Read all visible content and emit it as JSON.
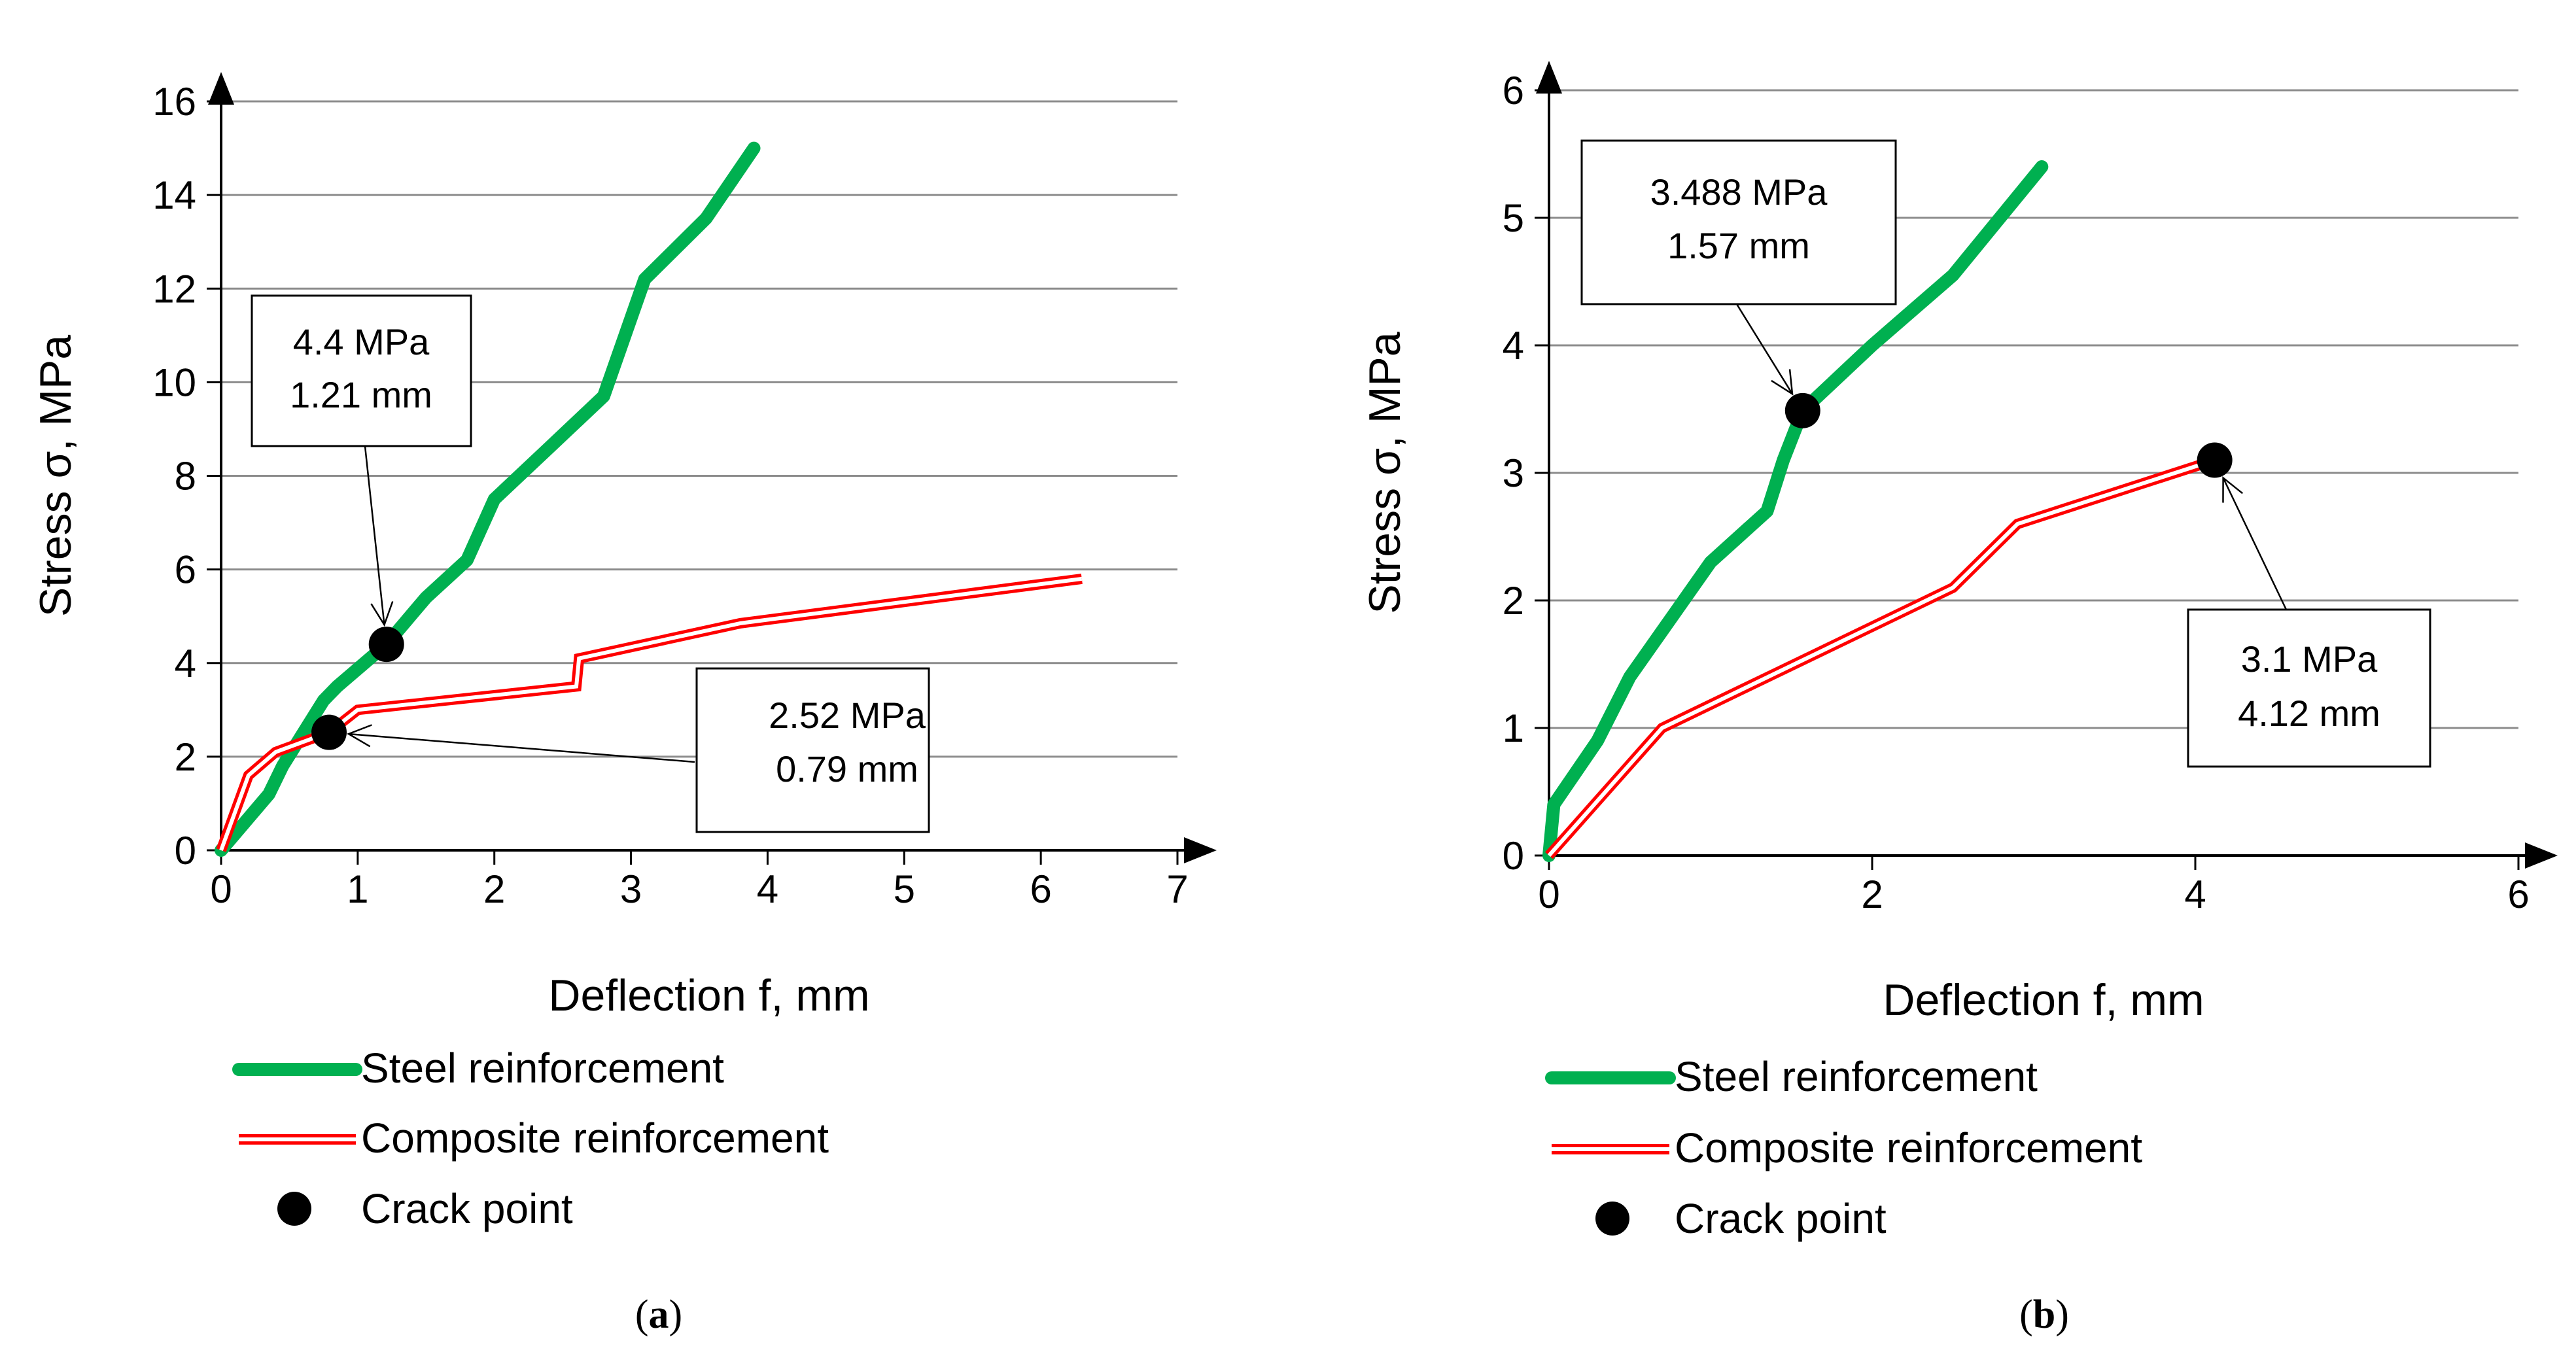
{
  "chart_data": [
    {
      "type": "line",
      "panel_label_open": "(",
      "panel_label_letter": "a",
      "panel_label_close": ")",
      "xlabel": "Deflection f, mm",
      "ylabel": "Stress σ, MPa",
      "xlim": [
        0,
        7
      ],
      "ylim": [
        0,
        16
      ],
      "x_ticks": [
        0,
        1,
        2,
        3,
        4,
        5,
        6,
        7
      ],
      "y_ticks": [
        0,
        2,
        4,
        6,
        8,
        10,
        12,
        14,
        16
      ],
      "grid": "horizontal",
      "series": [
        {
          "name": "Steel reinforcement",
          "color": "#00b050",
          "style": "thick-solid",
          "points": [
            [
              0,
              0
            ],
            [
              0.35,
              1.2
            ],
            [
              0.45,
              1.8
            ],
            [
              0.6,
              2.5
            ],
            [
              0.75,
              3.2
            ],
            [
              0.85,
              3.5
            ],
            [
              1.21,
              4.4
            ],
            [
              1.5,
              5.4
            ],
            [
              1.8,
              6.2
            ],
            [
              2.0,
              7.5
            ],
            [
              2.4,
              8.6
            ],
            [
              2.8,
              9.7
            ],
            [
              3.1,
              12.2
            ],
            [
              3.55,
              13.5
            ],
            [
              3.9,
              15.0
            ]
          ]
        },
        {
          "name": "Composite reinforcement",
          "color": "#ff0000",
          "style": "double-line",
          "points": [
            [
              0,
              0
            ],
            [
              0.2,
              1.6
            ],
            [
              0.4,
              2.1
            ],
            [
              0.79,
              2.52
            ],
            [
              1.0,
              3.0
            ],
            [
              2.6,
              3.5
            ],
            [
              2.62,
              4.1
            ],
            [
              3.8,
              4.85
            ],
            [
              6.3,
              5.8
            ]
          ]
        }
      ],
      "crack_points": [
        {
          "x": 1.21,
          "y": 4.4,
          "series": "Steel reinforcement"
        },
        {
          "x": 0.79,
          "y": 2.52,
          "series": "Composite reinforcement"
        }
      ],
      "crack_label": "Crack point",
      "annotations": [
        {
          "line1": "4.4 MPa",
          "line2": "1.21 mm"
        },
        {
          "line1": "2.52 MPa",
          "line2": "0.79 mm"
        }
      ]
    },
    {
      "type": "line",
      "panel_label_open": "(",
      "panel_label_letter": "b",
      "panel_label_close": ")",
      "xlabel": "Deflection f, mm",
      "ylabel": "Stress σ, MPa",
      "xlim": [
        0,
        6
      ],
      "ylim": [
        0,
        6
      ],
      "x_ticks": [
        0,
        2,
        4,
        6
      ],
      "y_ticks": [
        0,
        1,
        2,
        3,
        4,
        5,
        6
      ],
      "grid": "horizontal",
      "series": [
        {
          "name": "Steel reinforcement",
          "color": "#00b050",
          "style": "thick-solid",
          "points": [
            [
              0,
              0
            ],
            [
              0.03,
              0.4
            ],
            [
              0.3,
              0.9
            ],
            [
              0.5,
              1.4
            ],
            [
              1.0,
              2.3
            ],
            [
              1.35,
              2.7
            ],
            [
              1.45,
              3.1
            ],
            [
              1.57,
              3.488
            ],
            [
              2.0,
              4.0
            ],
            [
              2.5,
              4.55
            ],
            [
              3.05,
              5.4
            ]
          ]
        },
        {
          "name": "Composite reinforcement",
          "color": "#ff0000",
          "style": "double-line",
          "points": [
            [
              0,
              0
            ],
            [
              0.35,
              0.5
            ],
            [
              0.7,
              1.0
            ],
            [
              2.5,
              2.1
            ],
            [
              2.9,
              2.6
            ],
            [
              4.12,
              3.1
            ]
          ]
        }
      ],
      "crack_points": [
        {
          "x": 1.57,
          "y": 3.488,
          "series": "Steel reinforcement"
        },
        {
          "x": 4.12,
          "y": 3.1,
          "series": "Composite reinforcement"
        }
      ],
      "crack_label": "Crack point",
      "annotations": [
        {
          "line1": "3.488 MPa",
          "line2": "1.57 mm"
        },
        {
          "line1": "3.1 MPa",
          "line2": "4.12 mm"
        }
      ]
    }
  ]
}
